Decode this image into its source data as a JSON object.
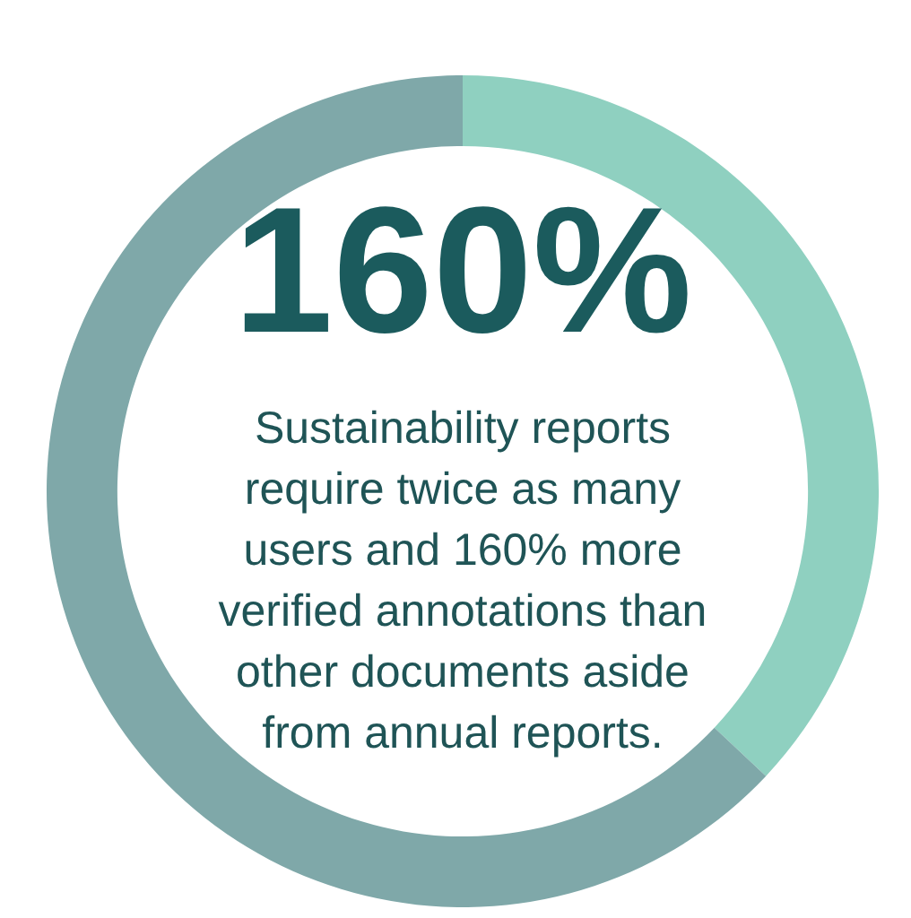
{
  "chart_data": {
    "type": "donut",
    "title": "160%",
    "categories": [
      null,
      null
    ],
    "values": [
      37,
      63
    ],
    "colors": [
      "#8fd0c0",
      "#7fa8a9"
    ],
    "annotations": [
      "Sustainability reports require twice as many users and 160% more verified annotations than other documents aside from annual reports."
    ]
  }
}
